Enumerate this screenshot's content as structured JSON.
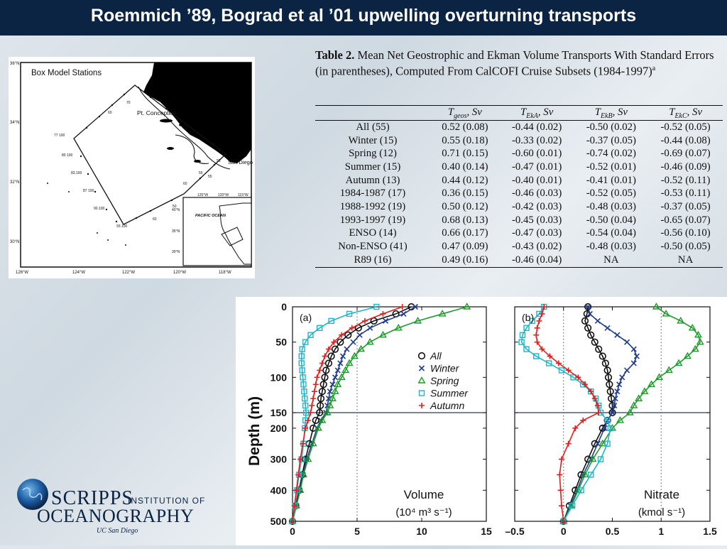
{
  "header": {
    "title": "Roemmich ’89, Bograd et al ’01 upwelling overturning transports"
  },
  "map": {
    "title": "Box Model Stations",
    "place_labels": [
      "Pt. Conception",
      "San Diego",
      "PACIFIC OCEAN"
    ],
    "lat_labels": [
      "36°N",
      "34°N",
      "32°N",
      "30°N"
    ],
    "lon_labels": [
      "126°W",
      "124°W",
      "122°W",
      "120°W",
      "118°W"
    ],
    "inset_lon_labels": [
      "125°W",
      "120°W",
      "115°W"
    ],
    "inset_lat_labels": [
      "40°N",
      "35°N",
      "30°N"
    ],
    "station_labels": [
      "77 100",
      "80 100",
      "83.100",
      "87 100",
      "90.100",
      "93.100",
      "70",
      "60",
      "60",
      "55",
      "60",
      "55",
      "55",
      "50"
    ]
  },
  "table": {
    "caption_bold": "Table 2.",
    "caption_text": "Mean Net Geostrophic and Ekman Volume Transports With Standard Errors (in parentheses), Computed From CalCOFI Cruise Subsets (1984-1997)",
    "caption_sup": "a",
    "columns": [
      "",
      "T_geos, Sv",
      "T_EkA, Sv",
      "T_EkB, Sv",
      "T_EkC, Sv"
    ],
    "rows": [
      [
        "All (55)",
        "0.52 (0.08)",
        "-0.44 (0.02)",
        "-0.50 (0.02)",
        "-0.52 (0.05)"
      ],
      [
        "Winter (15)",
        "0.55 (0.18)",
        "-0.33 (0.02)",
        "-0.37 (0.05)",
        "-0.44 (0.08)"
      ],
      [
        "Spring (12)",
        "0.71 (0.15)",
        "-0.60 (0.01)",
        "-0.74 (0.02)",
        "-0.69 (0.07)"
      ],
      [
        "Summer (15)",
        "0.40 (0.14)",
        "-0.47 (0.01)",
        "-0.52 (0.01)",
        "-0.46 (0.09)"
      ],
      [
        "Autumn (13)",
        "0.44 (0.12)",
        "-0.40 (0.01)",
        "-0.41 (0.01)",
        "-0.52 (0.11)"
      ],
      [
        "1984-1987 (17)",
        "0.36 (0.15)",
        "-0.46 (0.03)",
        "-0.52 (0.05)",
        "-0.53 (0.11)"
      ],
      [
        "1988-1992 (19)",
        "0.50 (0.12)",
        "-0.42 (0.03)",
        "-0.48 (0.03)",
        "-0.37 (0.05)"
      ],
      [
        "1993-1997 (19)",
        "0.68 (0.13)",
        "-0.45 (0.03)",
        "-0.50 (0.04)",
        "-0.65 (0.07)"
      ],
      [
        "ENSO (14)",
        "0.66 (0.17)",
        "-0.47 (0.03)",
        "-0.54 (0.04)",
        "-0.56 (0.10)"
      ],
      [
        "Non-ENSO (41)",
        "0.47 (0.09)",
        "-0.43 (0.02)",
        "-0.48 (0.03)",
        "-0.50 (0.05)"
      ],
      [
        "R89 (16)",
        "0.49 (0.16)",
        "-0.46 (0.04)",
        "NA",
        "NA"
      ]
    ]
  },
  "figure": {
    "y_axis_label": "Depth (m)",
    "panel_a": {
      "tag": "(a)",
      "label_line1": "Volume",
      "label_line2": "(10⁴ m³ s⁻¹)"
    },
    "panel_b": {
      "tag": "(b)",
      "label_line1": "Nitrate",
      "label_line2": "(kmol s⁻¹)"
    },
    "legend": [
      "All",
      "Winter",
      "Spring",
      "Summer",
      "Autumn"
    ],
    "y_ticks": [
      "0",
      "50",
      "100",
      "150",
      "200",
      "300",
      "400",
      "500"
    ],
    "a_x_ticks": [
      "0",
      "5",
      "10",
      "15"
    ],
    "b_x_ticks": [
      "–0.5",
      "0",
      "0.5",
      "1",
      "1.5"
    ]
  },
  "chart_data": [
    {
      "type": "line",
      "panel": "(a)",
      "xlabel": "Volume (10^4 m^3 s^-1)",
      "ylabel": "Depth (m)",
      "xlim": [
        0,
        15
      ],
      "ylim": [
        500,
        0
      ],
      "y_scale": "stretched upper 150 m",
      "y": [
        0,
        10,
        20,
        30,
        40,
        50,
        60,
        70,
        80,
        90,
        100,
        110,
        120,
        130,
        140,
        150,
        175,
        200,
        250,
        300,
        350,
        400,
        450,
        500
      ],
      "series": [
        {
          "name": "All",
          "color": "#111111",
          "marker": "circle",
          "x": [
            9.2,
            8.0,
            6.3,
            5.1,
            4.3,
            3.7,
            3.3,
            3.0,
            2.8,
            2.6,
            2.5,
            2.4,
            2.3,
            2.2,
            2.15,
            2.1,
            1.8,
            1.6,
            1.3,
            1.0,
            0.75,
            0.5,
            0.25,
            0
          ]
        },
        {
          "name": "Winter",
          "color": "#1f3d8c",
          "marker": "x",
          "x": [
            9.5,
            8.6,
            7.2,
            6.0,
            5.2,
            4.7,
            4.2,
            3.9,
            3.7,
            3.5,
            3.3,
            3.1,
            2.9,
            2.8,
            2.7,
            2.6,
            2.2,
            1.9,
            1.5,
            1.1,
            0.8,
            0.55,
            0.3,
            0
          ]
        },
        {
          "name": "Spring",
          "color": "#1e9a2a",
          "marker": "triangle",
          "x": [
            13.5,
            11.6,
            9.7,
            8.2,
            7.0,
            6.0,
            5.3,
            4.8,
            4.4,
            4.1,
            3.8,
            3.5,
            3.3,
            3.1,
            2.9,
            2.7,
            2.3,
            2.0,
            1.6,
            1.2,
            0.85,
            0.6,
            0.3,
            0
          ]
        },
        {
          "name": "Summer",
          "color": "#20b5c8",
          "marker": "square",
          "x": [
            6.5,
            4.4,
            3.0,
            2.1,
            1.4,
            1.0,
            0.75,
            0.7,
            0.7,
            0.75,
            0.8,
            0.85,
            0.9,
            0.95,
            1.0,
            1.05,
            1.0,
            0.95,
            0.85,
            0.7,
            0.5,
            0.35,
            0.2,
            0
          ]
        },
        {
          "name": "Autumn",
          "color": "#e02020",
          "marker": "plus",
          "x": [
            8.5,
            7.0,
            5.6,
            4.6,
            3.8,
            3.2,
            2.8,
            2.5,
            2.3,
            2.1,
            1.9,
            1.8,
            1.7,
            1.6,
            1.5,
            1.4,
            1.2,
            1.0,
            0.8,
            0.6,
            0.45,
            0.3,
            0.15,
            0
          ]
        }
      ]
    },
    {
      "type": "line",
      "panel": "(b)",
      "xlabel": "Nitrate (kmol s^-1)",
      "ylabel": "Depth (m)",
      "xlim": [
        -0.5,
        1.5
      ],
      "ylim": [
        500,
        0
      ],
      "y_scale": "stretched upper 150 m",
      "y": [
        0,
        10,
        20,
        30,
        40,
        50,
        60,
        70,
        80,
        90,
        100,
        110,
        120,
        130,
        140,
        150,
        175,
        200,
        250,
        300,
        350,
        400,
        450,
        500
      ],
      "series": [
        {
          "name": "All",
          "color": "#111111",
          "marker": "circle",
          "x": [
            0.25,
            0.24,
            0.22,
            0.25,
            0.28,
            0.32,
            0.36,
            0.4,
            0.43,
            0.45,
            0.46,
            0.47,
            0.48,
            0.49,
            0.5,
            0.5,
            0.45,
            0.4,
            0.32,
            0.25,
            0.18,
            0.12,
            0.06,
            0
          ]
        },
        {
          "name": "Winter",
          "color": "#1f3d8c",
          "marker": "x",
          "x": [
            0.25,
            0.27,
            0.35,
            0.45,
            0.55,
            0.65,
            0.72,
            0.75,
            0.72,
            0.65,
            0.6,
            0.57,
            0.55,
            0.53,
            0.52,
            0.5,
            0.45,
            0.42,
            0.35,
            0.28,
            0.2,
            0.14,
            0.07,
            0
          ]
        },
        {
          "name": "Spring",
          "color": "#1e9a2a",
          "marker": "triangle",
          "x": [
            0.95,
            1.05,
            1.2,
            1.32,
            1.38,
            1.4,
            1.35,
            1.27,
            1.18,
            1.08,
            0.98,
            0.9,
            0.83,
            0.77,
            0.72,
            0.68,
            0.58,
            0.5,
            0.4,
            0.3,
            0.22,
            0.15,
            0.08,
            0
          ]
        },
        {
          "name": "Summer",
          "color": "#20b5c8",
          "marker": "square",
          "x": [
            -0.2,
            -0.25,
            -0.32,
            -0.38,
            -0.42,
            -0.43,
            -0.38,
            -0.28,
            -0.15,
            -0.02,
            0.1,
            0.2,
            0.28,
            0.33,
            0.36,
            0.38,
            0.45,
            0.48,
            0.45,
            0.38,
            0.28,
            0.18,
            0.09,
            0
          ]
        },
        {
          "name": "Autumn",
          "color": "#e02020",
          "marker": "plus",
          "x": [
            -0.2,
            -0.22,
            -0.25,
            -0.27,
            -0.28,
            -0.27,
            -0.22,
            -0.14,
            -0.05,
            0.05,
            0.15,
            0.22,
            0.28,
            0.32,
            0.35,
            0.36,
            0.2,
            0.12,
            0.05,
            -0.02,
            -0.04,
            -0.03,
            -0.02,
            0
          ]
        }
      ]
    }
  ]
}
